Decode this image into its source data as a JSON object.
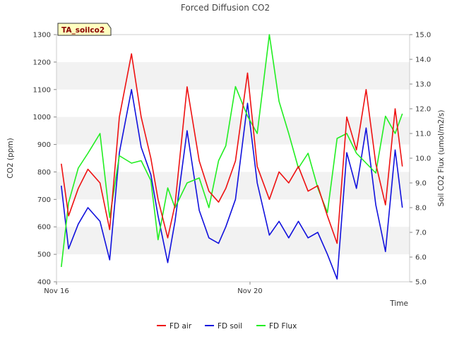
{
  "chart_data": {
    "type": "line",
    "title": "Forced Diffusion CO2",
    "xlabel": "Time",
    "ylabel": "CO2 (ppm)",
    "y2label": "Soil CO2 Flux (umol/m2/s)",
    "tag": "TA_soilco2",
    "x_tick_labels": [
      "Nov 16",
      "Nov 20"
    ],
    "x_tick_days": [
      16,
      20
    ],
    "xlim": [
      16,
      23.3
    ],
    "ylim": [
      400,
      1300
    ],
    "y2lim": [
      5.0,
      15.0
    ],
    "yticks": [
      400,
      500,
      600,
      700,
      800,
      900,
      1000,
      1100,
      1200,
      1300
    ],
    "y2ticks": [
      "5.0",
      "6.0",
      "7.0",
      "8.0",
      "9.0",
      "10.0",
      "11.0",
      "12.0",
      "13.0",
      "14.0",
      "15.0"
    ],
    "grid_bands": true,
    "legend_position": "bottom",
    "colors": {
      "fd_air": "#ee1111",
      "fd_soil": "#1111dd",
      "fd_flux": "#22ee22",
      "band": "#f2f2f2",
      "tag_bg": "#ffffc0"
    },
    "series": [
      {
        "name": "FD air",
        "axis": "left",
        "x": [
          16.1,
          16.25,
          16.45,
          16.65,
          16.9,
          17.1,
          17.3,
          17.55,
          17.75,
          17.95,
          18.1,
          18.3,
          18.45,
          18.7,
          18.95,
          19.15,
          19.35,
          19.5,
          19.7,
          19.95,
          20.15,
          20.4,
          20.6,
          20.8,
          21.0,
          21.2,
          21.4,
          21.6,
          21.8,
          22.0,
          22.2,
          22.4,
          22.6,
          22.8,
          23.0,
          23.15
        ],
        "values": [
          830,
          640,
          740,
          810,
          760,
          590,
          1000,
          1230,
          1000,
          850,
          700,
          560,
          680,
          1110,
          840,
          730,
          690,
          740,
          840,
          1160,
          820,
          700,
          800,
          760,
          820,
          730,
          750,
          640,
          540,
          1000,
          880,
          1100,
          830,
          680,
          1030,
          820
        ]
      },
      {
        "name": "FD soil",
        "axis": "left",
        "x": [
          16.1,
          16.25,
          16.45,
          16.65,
          16.9,
          17.1,
          17.3,
          17.55,
          17.75,
          17.95,
          18.1,
          18.3,
          18.45,
          18.7,
          18.95,
          19.15,
          19.35,
          19.5,
          19.7,
          19.95,
          20.15,
          20.4,
          20.6,
          20.8,
          21.0,
          21.2,
          21.4,
          21.6,
          21.8,
          22.0,
          22.2,
          22.4,
          22.6,
          22.8,
          23.0,
          23.15
        ],
        "values": [
          750,
          520,
          610,
          670,
          620,
          480,
          870,
          1100,
          890,
          790,
          640,
          470,
          620,
          950,
          660,
          560,
          540,
          600,
          700,
          1050,
          760,
          570,
          620,
          560,
          620,
          560,
          580,
          500,
          410,
          870,
          740,
          960,
          680,
          510,
          880,
          670
        ]
      },
      {
        "name": "FD Flux",
        "axis": "right",
        "x": [
          16.1,
          16.25,
          16.45,
          16.65,
          16.9,
          17.1,
          17.3,
          17.55,
          17.75,
          17.95,
          18.1,
          18.3,
          18.45,
          18.7,
          18.95,
          19.15,
          19.35,
          19.5,
          19.7,
          19.95,
          20.15,
          20.4,
          20.6,
          20.8,
          21.0,
          21.2,
          21.4,
          21.6,
          21.8,
          22.0,
          22.2,
          22.4,
          22.6,
          22.8,
          23.0,
          23.15
        ],
        "values": [
          5.6,
          8.2,
          9.6,
          10.2,
          11.0,
          7.6,
          10.1,
          9.8,
          9.9,
          9.1,
          6.7,
          8.8,
          8.0,
          9.0,
          9.2,
          8.0,
          9.9,
          10.5,
          12.9,
          11.7,
          11.0,
          15.0,
          12.3,
          11.0,
          9.6,
          10.2,
          8.8,
          7.8,
          10.8,
          11.0,
          10.2,
          9.8,
          9.4,
          11.7,
          11.0,
          11.8
        ]
      }
    ]
  }
}
